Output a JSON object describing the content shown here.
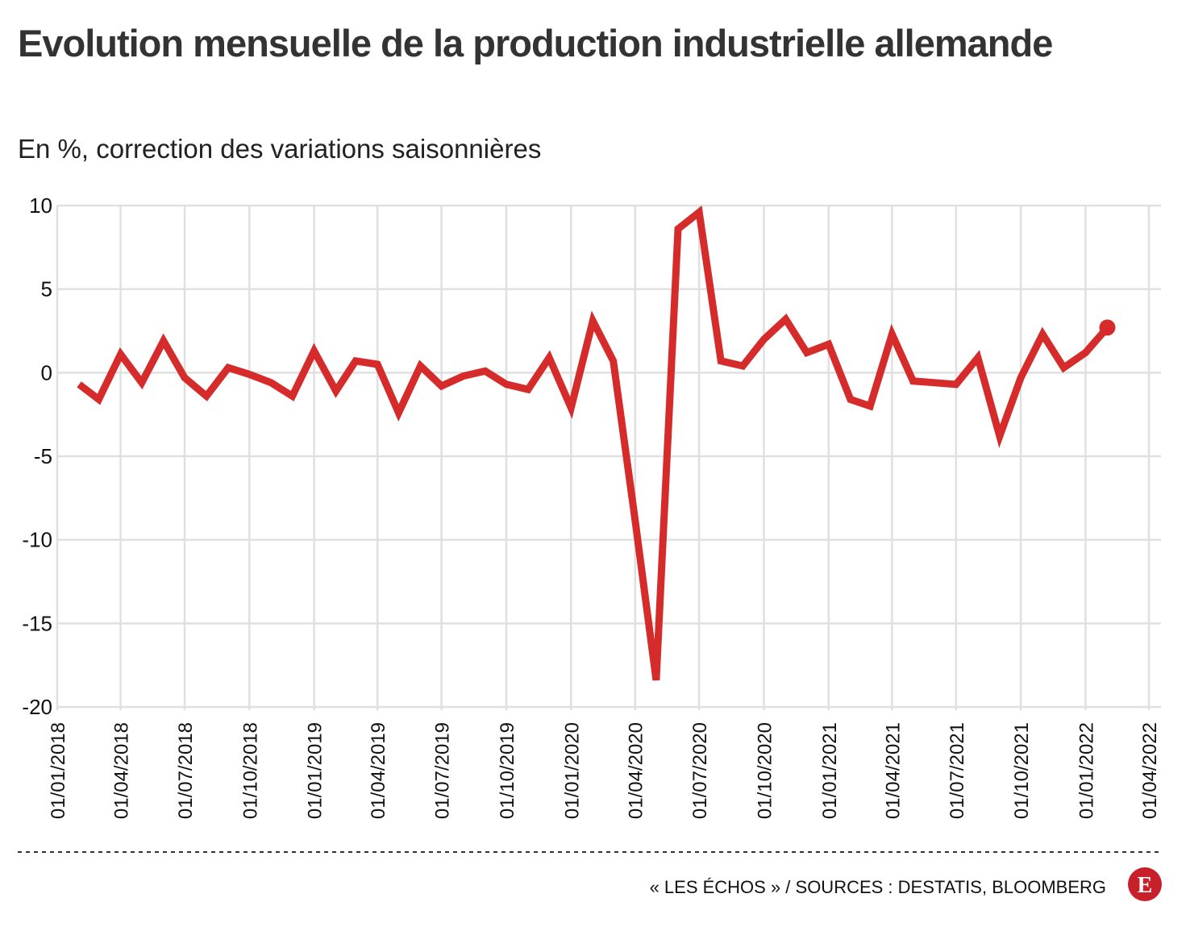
{
  "chart_data": {
    "type": "line",
    "title": "Evolution mensuelle de la production industrielle allemande",
    "subtitle": "En %, correction des variations saisonnières",
    "source": "« LES ÉCHOS » / SOURCES : DESTATIS, BLOOMBERG",
    "logo": "E",
    "color": "#d52b2b",
    "end_marker": true,
    "grid": true,
    "x": [
      "01/02/2018",
      "01/03/2018",
      "01/04/2018",
      "01/05/2018",
      "01/06/2018",
      "01/07/2018",
      "01/08/2018",
      "01/09/2018",
      "01/10/2018",
      "01/11/2018",
      "01/12/2018",
      "01/01/2019",
      "01/02/2019",
      "01/03/2019",
      "01/04/2019",
      "01/05/2019",
      "01/06/2019",
      "01/07/2019",
      "01/08/2019",
      "01/09/2019",
      "01/10/2019",
      "01/11/2019",
      "01/12/2019",
      "01/01/2020",
      "01/02/2020",
      "01/03/2020",
      "01/04/2020",
      "01/05/2020",
      "01/06/2020",
      "01/07/2020",
      "01/08/2020",
      "01/09/2020",
      "01/10/2020",
      "01/11/2020",
      "01/12/2020",
      "01/01/2021",
      "01/02/2021",
      "01/03/2021",
      "01/04/2021",
      "01/05/2021",
      "01/06/2021",
      "01/07/2021",
      "01/08/2021",
      "01/09/2021",
      "01/10/2021",
      "01/11/2021",
      "01/12/2021",
      "01/01/2022",
      "01/02/2022"
    ],
    "values": [
      -0.7,
      -1.6,
      1.1,
      -0.6,
      1.9,
      -0.3,
      -1.4,
      0.3,
      -0.1,
      -0.6,
      -1.4,
      1.3,
      -1.1,
      0.7,
      0.5,
      -2.4,
      0.4,
      -0.8,
      -0.2,
      0.1,
      -0.7,
      -1.0,
      0.9,
      -2.1,
      3.1,
      0.7,
      -8.8,
      -18.4,
      8.6,
      9.6,
      0.7,
      0.4,
      2.0,
      3.2,
      1.2,
      1.7,
      -1.6,
      -2.0,
      2.3,
      -0.5,
      -0.6,
      -0.7,
      0.9,
      -3.8,
      -0.3,
      2.3,
      0.3,
      1.2,
      2.7
    ],
    "xlim": [
      "01/01/2018",
      "01/04/2022"
    ],
    "xticks": [
      "01/01/2018",
      "01/04/2018",
      "01/07/2018",
      "01/10/2018",
      "01/01/2019",
      "01/04/2019",
      "01/07/2019",
      "01/10/2019",
      "01/01/2020",
      "01/04/2020",
      "01/07/2020",
      "01/10/2020",
      "01/01/2021",
      "01/04/2021",
      "01/07/2021",
      "01/10/2021",
      "01/01/2022",
      "01/04/2022"
    ],
    "ylim": [
      -20,
      10
    ],
    "yticks": [
      -20,
      -15,
      -10,
      -5,
      0,
      5,
      10
    ]
  }
}
